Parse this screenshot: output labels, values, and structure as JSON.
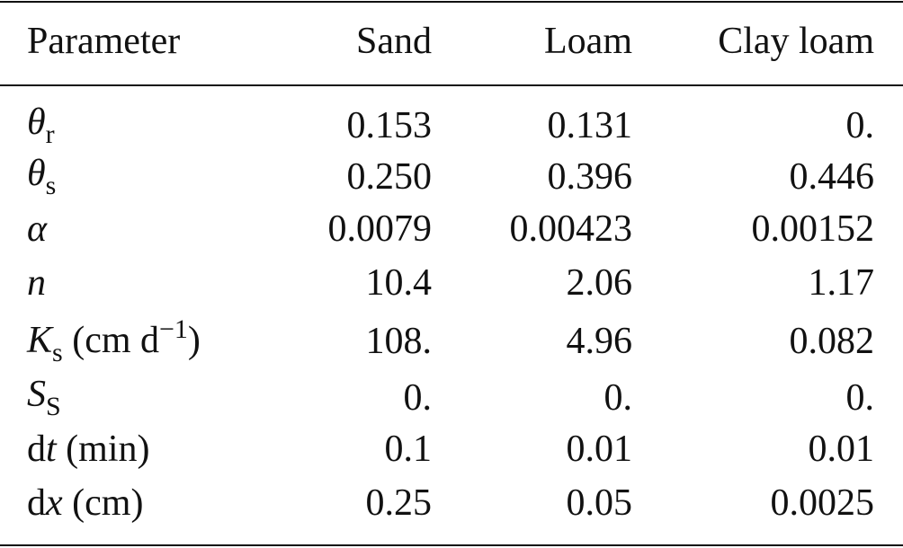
{
  "table": {
    "header": [
      "Parameter",
      "Sand",
      "Loam",
      "Clay loam"
    ],
    "rows": [
      {
        "parameter": [
          {
            "text": "θ",
            "style": "italic"
          },
          {
            "text": "r",
            "style": "sub"
          }
        ],
        "values": [
          "0.153",
          "0.131",
          "0."
        ]
      },
      {
        "parameter": [
          {
            "text": "θ",
            "style": "italic"
          },
          {
            "text": "s",
            "style": "sub"
          }
        ],
        "values": [
          "0.250",
          "0.396",
          "0.446"
        ]
      },
      {
        "parameter": [
          {
            "text": "α",
            "style": "italic"
          }
        ],
        "values": [
          "0.0079",
          "0.00423",
          "0.00152"
        ]
      },
      {
        "parameter": [
          {
            "text": "n",
            "style": "italic"
          }
        ],
        "values": [
          "10.4",
          "2.06",
          "1.17"
        ]
      },
      {
        "parameter": [
          {
            "text": "K",
            "style": "italic"
          },
          {
            "text": "s",
            "style": "sub"
          },
          {
            "text": " (cm d",
            "style": "normal"
          },
          {
            "text": "−1",
            "style": "sup"
          },
          {
            "text": ")",
            "style": "normal"
          }
        ],
        "values": [
          "108.",
          "4.96",
          "0.082"
        ]
      },
      {
        "parameter": [
          {
            "text": "S",
            "style": "italic"
          },
          {
            "text": "S",
            "style": "sub"
          }
        ],
        "values": [
          "0.",
          "0.",
          "0."
        ]
      },
      {
        "parameter": [
          {
            "text": "d",
            "style": "normal"
          },
          {
            "text": "t",
            "style": "italic"
          },
          {
            "text": " (min)",
            "style": "normal"
          }
        ],
        "values": [
          "0.1",
          "0.01",
          "0.01"
        ]
      },
      {
        "parameter": [
          {
            "text": "d",
            "style": "normal"
          },
          {
            "text": "x",
            "style": "italic"
          },
          {
            "text": " (cm)",
            "style": "normal"
          }
        ],
        "values": [
          "0.25",
          "0.05",
          "0.0025"
        ]
      }
    ]
  }
}
